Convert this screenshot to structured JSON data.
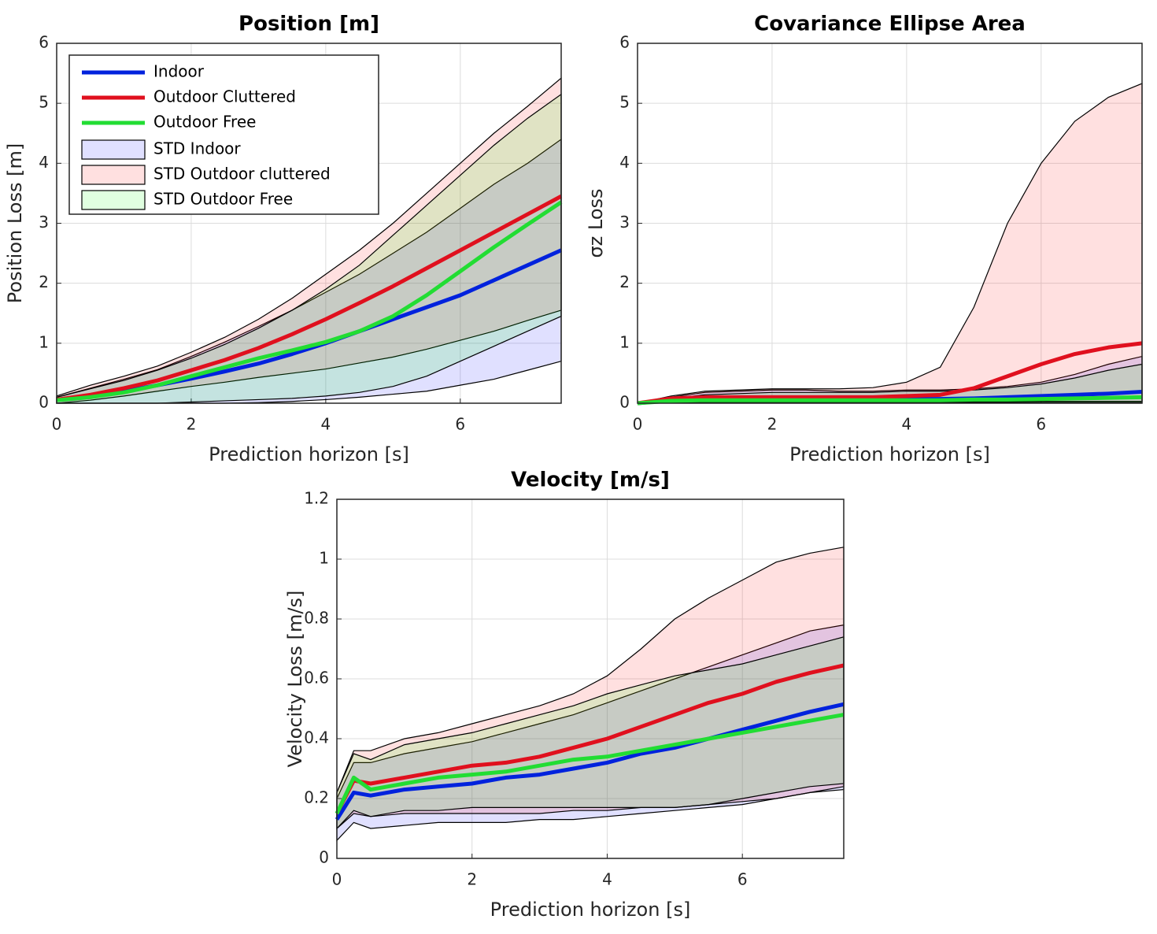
{
  "chart_data": [
    {
      "type": "line",
      "title": "Position [m]",
      "xlabel": "Prediction horizon [s]",
      "ylabel": "Position Loss [m]",
      "x": [
        0,
        0.5,
        1,
        1.5,
        2,
        2.5,
        3,
        3.5,
        4,
        4.5,
        5,
        5.5,
        6,
        6.5,
        7,
        7.5
      ],
      "xlim": [
        0,
        7.5
      ],
      "ylim": [
        0,
        6
      ],
      "xticks": [
        0,
        2,
        4,
        6
      ],
      "yticks": [
        0,
        1,
        2,
        3,
        4,
        5,
        6
      ],
      "grid": true,
      "legend": "upper left",
      "series": [
        {
          "name": "Indoor",
          "color": "#0022dd",
          "values": [
            0.05,
            0.12,
            0.2,
            0.3,
            0.41,
            0.53,
            0.66,
            0.82,
            1.0,
            1.2,
            1.4,
            1.6,
            1.8,
            2.05,
            2.3,
            2.55
          ]
        },
        {
          "name": "Outdoor Cluttered",
          "color": "#e0101e",
          "values": [
            0.06,
            0.14,
            0.25,
            0.38,
            0.55,
            0.72,
            0.92,
            1.15,
            1.4,
            1.67,
            1.95,
            2.25,
            2.55,
            2.85,
            3.15,
            3.45
          ]
        },
        {
          "name": "Outdoor Free",
          "color": "#22dd33",
          "values": [
            0.05,
            0.1,
            0.18,
            0.3,
            0.45,
            0.6,
            0.75,
            0.88,
            1.02,
            1.2,
            1.45,
            1.8,
            2.2,
            2.6,
            2.98,
            3.35
          ]
        }
      ],
      "bands": [
        {
          "name": "STD Indoor",
          "color": "#0000ff",
          "lower": [
            0,
            0,
            0,
            0,
            0,
            0,
            0.01,
            0.03,
            0.06,
            0.1,
            0.15,
            0.2,
            0.3,
            0.4,
            0.55,
            0.7
          ],
          "upper": [
            0.1,
            0.25,
            0.4,
            0.56,
            0.78,
            1.02,
            1.28,
            1.55,
            1.85,
            2.15,
            2.5,
            2.85,
            3.25,
            3.65,
            4.0,
            4.4
          ]
        },
        {
          "name": "STD Outdoor cluttered",
          "color": "#ff0000",
          "lower": [
            0,
            0.05,
            0.12,
            0.2,
            0.28,
            0.35,
            0.43,
            0.5,
            0.57,
            0.67,
            0.77,
            0.9,
            1.05,
            1.2,
            1.38,
            1.55
          ],
          "upper": [
            0.12,
            0.3,
            0.45,
            0.62,
            0.85,
            1.1,
            1.4,
            1.75,
            2.15,
            2.55,
            3.0,
            3.5,
            4.0,
            4.5,
            4.95,
            5.42
          ]
        },
        {
          "name": "STD Outdoor Free",
          "color": "#00ff00",
          "lower": [
            0,
            0,
            0,
            0,
            0.02,
            0.04,
            0.06,
            0.08,
            0.12,
            0.18,
            0.28,
            0.45,
            0.7,
            0.95,
            1.2,
            1.45
          ],
          "upper": [
            0.1,
            0.24,
            0.38,
            0.55,
            0.75,
            0.98,
            1.25,
            1.55,
            1.9,
            2.3,
            2.8,
            3.3,
            3.8,
            4.3,
            4.75,
            5.15
          ]
        }
      ]
    },
    {
      "type": "line",
      "title": "Covariance Ellipse Area",
      "xlabel": "Prediction horizon [s]",
      "ylabel": "σz Loss",
      "x": [
        0,
        0.5,
        1,
        1.5,
        2,
        2.5,
        3,
        3.5,
        4,
        4.5,
        5,
        5.5,
        6,
        6.5,
        7,
        7.5
      ],
      "xlim": [
        0,
        7.5
      ],
      "ylim": [
        0,
        6
      ],
      "xticks": [
        0,
        2,
        4,
        6
      ],
      "yticks": [
        0,
        1,
        2,
        3,
        4,
        5,
        6
      ],
      "grid": true,
      "series": [
        {
          "color": "#0022dd",
          "values": [
            0,
            0.05,
            0.06,
            0.06,
            0.06,
            0.06,
            0.06,
            0.06,
            0.07,
            0.07,
            0.08,
            0.1,
            0.12,
            0.14,
            0.16,
            0.19
          ]
        },
        {
          "color": "#e0101e",
          "values": [
            0,
            0.08,
            0.1,
            0.1,
            0.1,
            0.1,
            0.1,
            0.1,
            0.12,
            0.14,
            0.25,
            0.45,
            0.65,
            0.82,
            0.93,
            1.0
          ]
        },
        {
          "color": "#22dd33",
          "values": [
            0,
            0.04,
            0.05,
            0.05,
            0.05,
            0.05,
            0.05,
            0.05,
            0.05,
            0.05,
            0.06,
            0.06,
            0.07,
            0.08,
            0.09,
            0.1
          ]
        }
      ],
      "bands": [
        {
          "color": "#0000ff",
          "lower": [
            0,
            0.01,
            0.02,
            0.02,
            0.02,
            0.02,
            0.02,
            0.02,
            0.02,
            0.02,
            0.02,
            0.02,
            0.03,
            0.03,
            0.03,
            0.03
          ],
          "upper": [
            0,
            0.1,
            0.18,
            0.2,
            0.22,
            0.22,
            0.2,
            0.2,
            0.22,
            0.22,
            0.24,
            0.28,
            0.35,
            0.48,
            0.65,
            0.78
          ]
        },
        {
          "color": "#ff0000",
          "lower": [
            0,
            0.02,
            0.03,
            0.03,
            0.03,
            0.03,
            0.03,
            0.03,
            0.03,
            0.03,
            0.03,
            0.03,
            0.03,
            0.03,
            0.03,
            0.03
          ],
          "upper": [
            0,
            0.12,
            0.2,
            0.22,
            0.24,
            0.24,
            0.24,
            0.26,
            0.35,
            0.6,
            1.6,
            3.0,
            4.0,
            4.7,
            5.1,
            5.33
          ]
        },
        {
          "color": "#00ff00",
          "lower": [
            0,
            0.01,
            0.01,
            0.01,
            0.01,
            0.01,
            0.01,
            0.01,
            0.01,
            0.01,
            0.01,
            0.01,
            0.01,
            0.01,
            0.01,
            0.01
          ],
          "upper": [
            0,
            0.08,
            0.14,
            0.16,
            0.18,
            0.18,
            0.18,
            0.18,
            0.2,
            0.2,
            0.22,
            0.26,
            0.32,
            0.42,
            0.55,
            0.65
          ]
        }
      ]
    },
    {
      "type": "line",
      "title": "Velocity [m/s]",
      "xlabel": "Prediction horizon [s]",
      "ylabel": "Velocity Loss [m/s]",
      "x": [
        0,
        0.25,
        0.5,
        1,
        1.5,
        2,
        2.5,
        3,
        3.5,
        4,
        4.5,
        5,
        5.5,
        6,
        6.5,
        7,
        7.5
      ],
      "xlim": [
        0,
        7.5
      ],
      "ylim": [
        0,
        1.2
      ],
      "xticks": [
        0,
        2,
        4,
        6
      ],
      "yticks": [
        0,
        0.2,
        0.4,
        0.6,
        0.8,
        1,
        1.2
      ],
      "grid": true,
      "series": [
        {
          "color": "#0022dd",
          "values": [
            0.13,
            0.22,
            0.21,
            0.23,
            0.24,
            0.25,
            0.27,
            0.28,
            0.3,
            0.32,
            0.35,
            0.37,
            0.4,
            0.43,
            0.46,
            0.49,
            0.515
          ]
        },
        {
          "color": "#e0101e",
          "values": [
            0.15,
            0.26,
            0.25,
            0.27,
            0.29,
            0.31,
            0.32,
            0.34,
            0.37,
            0.4,
            0.44,
            0.48,
            0.52,
            0.55,
            0.59,
            0.62,
            0.645
          ]
        },
        {
          "color": "#22dd33",
          "values": [
            0.15,
            0.27,
            0.23,
            0.25,
            0.27,
            0.28,
            0.29,
            0.31,
            0.33,
            0.34,
            0.36,
            0.38,
            0.4,
            0.42,
            0.44,
            0.46,
            0.48
          ]
        }
      ],
      "bands": [
        {
          "color": "#0000ff",
          "lower": [
            0.06,
            0.12,
            0.1,
            0.11,
            0.12,
            0.12,
            0.12,
            0.13,
            0.13,
            0.14,
            0.15,
            0.16,
            0.17,
            0.18,
            0.2,
            0.22,
            0.23
          ],
          "upper": [
            0.2,
            0.32,
            0.32,
            0.35,
            0.37,
            0.39,
            0.42,
            0.45,
            0.48,
            0.52,
            0.56,
            0.6,
            0.64,
            0.68,
            0.72,
            0.76,
            0.78
          ]
        },
        {
          "color": "#ff0000",
          "lower": [
            0.1,
            0.15,
            0.14,
            0.15,
            0.15,
            0.15,
            0.15,
            0.15,
            0.16,
            0.16,
            0.17,
            0.17,
            0.18,
            0.19,
            0.2,
            0.22,
            0.24
          ],
          "upper": [
            0.22,
            0.36,
            0.36,
            0.4,
            0.42,
            0.45,
            0.48,
            0.51,
            0.55,
            0.61,
            0.7,
            0.8,
            0.87,
            0.93,
            0.99,
            1.02,
            1.04
          ]
        },
        {
          "color": "#00ff00",
          "lower": [
            0.1,
            0.16,
            0.14,
            0.16,
            0.16,
            0.17,
            0.17,
            0.17,
            0.17,
            0.17,
            0.17,
            0.17,
            0.18,
            0.2,
            0.22,
            0.24,
            0.25
          ],
          "upper": [
            0.22,
            0.35,
            0.33,
            0.38,
            0.4,
            0.42,
            0.45,
            0.48,
            0.51,
            0.55,
            0.58,
            0.61,
            0.63,
            0.65,
            0.68,
            0.71,
            0.74
          ]
        }
      ]
    }
  ]
}
